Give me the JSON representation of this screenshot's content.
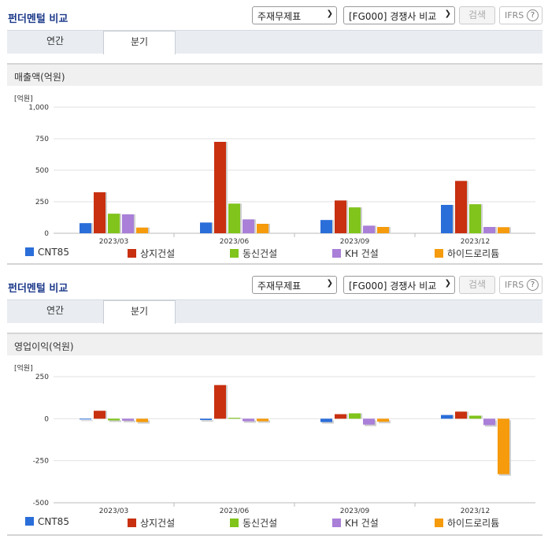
{
  "panels": [
    {
      "title": "펀더멘털 비교",
      "statement_select": "주재무제표",
      "peer_select": "[FG000] 경쟁사 비교",
      "search_label": "검색",
      "ifrs_label": "IFRS",
      "help_glyph": "?",
      "tabs": [
        {
          "label": "연간"
        },
        {
          "label": "분기"
        }
      ],
      "section_title": "매출액(억원)",
      "unit_label": "[억원]"
    },
    {
      "title": "펀더멘털 비교",
      "statement_select": "주재무제표",
      "peer_select": "[FG000] 경쟁사 비교",
      "search_label": "검색",
      "ifrs_label": "IFRS",
      "help_glyph": "?",
      "tabs": [
        {
          "label": "연간"
        },
        {
          "label": "분기"
        }
      ],
      "section_title": "영업이익(억원)",
      "unit_label": "[억원]"
    }
  ],
  "colors": {
    "CNT85": "#2a6ed9",
    "상지건설": "#c83010",
    "동신건설": "#80c41c",
    "KH 건설": "#a97fd8",
    "하이드로리튬": "#f59b0c"
  },
  "chart_data": [
    {
      "type": "bar",
      "categories": [
        "2023/03",
        "2023/06",
        "2023/09",
        "2023/12"
      ],
      "ylim": [
        0,
        1000
      ],
      "yticks": [
        "0",
        "250",
        "500",
        "750",
        "1,000"
      ],
      "ytick_values": [
        0,
        250,
        500,
        750,
        1000
      ],
      "grid": true,
      "legend_position": "bottom",
      "series": [
        {
          "name": "CNT85",
          "values": [
            80,
            85,
            105,
            225
          ]
        },
        {
          "name": "상지건설",
          "values": [
            325,
            725,
            260,
            415
          ]
        },
        {
          "name": "동신건설",
          "values": [
            155,
            235,
            205,
            230
          ]
        },
        {
          "name": "KH 건설",
          "values": [
            150,
            110,
            60,
            50
          ]
        },
        {
          "name": "하이드로리튬",
          "values": [
            45,
            75,
            50,
            48
          ]
        }
      ]
    },
    {
      "type": "bar",
      "categories": [
        "2023/03",
        "2023/06",
        "2023/09",
        "2023/12"
      ],
      "ylim": [
        -500,
        250
      ],
      "yticks": [
        "-500",
        "-250",
        "0",
        "250"
      ],
      "ytick_values": [
        -500,
        -250,
        0,
        250
      ],
      "grid": true,
      "legend_position": "bottom",
      "series": [
        {
          "name": "CNT85",
          "values": [
            -2,
            -8,
            -20,
            22
          ]
        },
        {
          "name": "상지건설",
          "values": [
            47,
            200,
            27,
            42
          ]
        },
        {
          "name": "동신건설",
          "values": [
            -10,
            5,
            32,
            18
          ]
        },
        {
          "name": "KH 건설",
          "values": [
            -12,
            -15,
            -35,
            -38
          ]
        },
        {
          "name": "하이드로리튬",
          "values": [
            -20,
            -15,
            -18,
            -330
          ]
        }
      ]
    }
  ]
}
